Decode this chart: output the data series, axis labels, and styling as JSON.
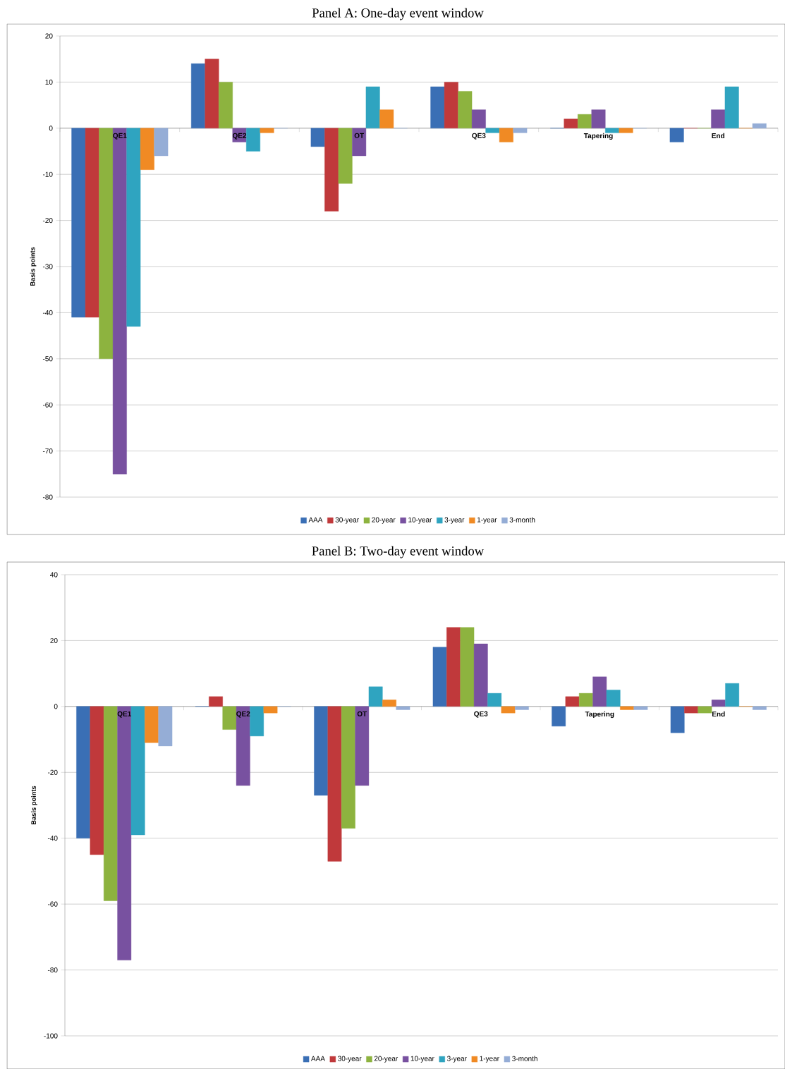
{
  "chart_data": [
    {
      "type": "bar",
      "title": "Panel A: One-day event window",
      "ylabel": "Basis points",
      "categories": [
        "QE1",
        "QE2",
        "OT",
        "QE3",
        "Tapering",
        "End"
      ],
      "ylim": [
        -80,
        20
      ],
      "yticks": [
        -80,
        -70,
        -60,
        -50,
        -40,
        -30,
        -20,
        -10,
        0,
        10,
        20
      ],
      "grid": "y",
      "legend": "bottom",
      "series": [
        {
          "name": "AAA",
          "color": "#3a6fb5",
          "values": [
            -41,
            14,
            -4,
            9,
            0,
            -3
          ]
        },
        {
          "name": "30-year",
          "color": "#c0393b",
          "values": [
            -41,
            15,
            -18,
            10,
            2,
            0
          ]
        },
        {
          "name": "20-year",
          "color": "#8db33f",
          "values": [
            -50,
            10,
            -12,
            8,
            3,
            0
          ]
        },
        {
          "name": "10-year",
          "color": "#7851a0",
          "values": [
            -75,
            -3,
            -6,
            4,
            4,
            4
          ]
        },
        {
          "name": "3-year",
          "color": "#2fa4c0",
          "values": [
            -43,
            -5,
            9,
            -1,
            -1,
            9
          ]
        },
        {
          "name": "1-year",
          "color": "#f08a24",
          "values": [
            -9,
            -1,
            4,
            -3,
            -1,
            0
          ]
        },
        {
          "name": "3-month",
          "color": "#95add6",
          "values": [
            -6,
            0,
            0,
            -1,
            0,
            1
          ]
        }
      ]
    },
    {
      "type": "bar",
      "title": "Panel B: Two-day event window",
      "ylabel": "Basis points",
      "categories": [
        "QE1",
        "QE2",
        "OT",
        "QE3",
        "Tapering",
        "End"
      ],
      "ylim": [
        -100,
        40
      ],
      "yticks": [
        -100,
        -80,
        -60,
        -40,
        -20,
        0,
        20,
        40
      ],
      "grid": "y",
      "legend": "bottom",
      "series": [
        {
          "name": "AAA",
          "color": "#3a6fb5",
          "values": [
            -40,
            0,
            -27,
            18,
            -6,
            -8
          ]
        },
        {
          "name": "30-year",
          "color": "#c0393b",
          "values": [
            -45,
            3,
            -47,
            24,
            3,
            -2
          ]
        },
        {
          "name": "20-year",
          "color": "#8db33f",
          "values": [
            -59,
            -7,
            -37,
            24,
            4,
            -2
          ]
        },
        {
          "name": "10-year",
          "color": "#7851a0",
          "values": [
            -77,
            -24,
            -24,
            19,
            9,
            2
          ]
        },
        {
          "name": "3-year",
          "color": "#2fa4c0",
          "values": [
            -39,
            -9,
            6,
            4,
            5,
            7
          ]
        },
        {
          "name": "1-year",
          "color": "#f08a24",
          "values": [
            -11,
            -2,
            2,
            -2,
            -1,
            0
          ]
        },
        {
          "name": "3-month",
          "color": "#95add6",
          "values": [
            -12,
            0,
            -1,
            -1,
            -1,
            -1
          ]
        }
      ]
    }
  ]
}
